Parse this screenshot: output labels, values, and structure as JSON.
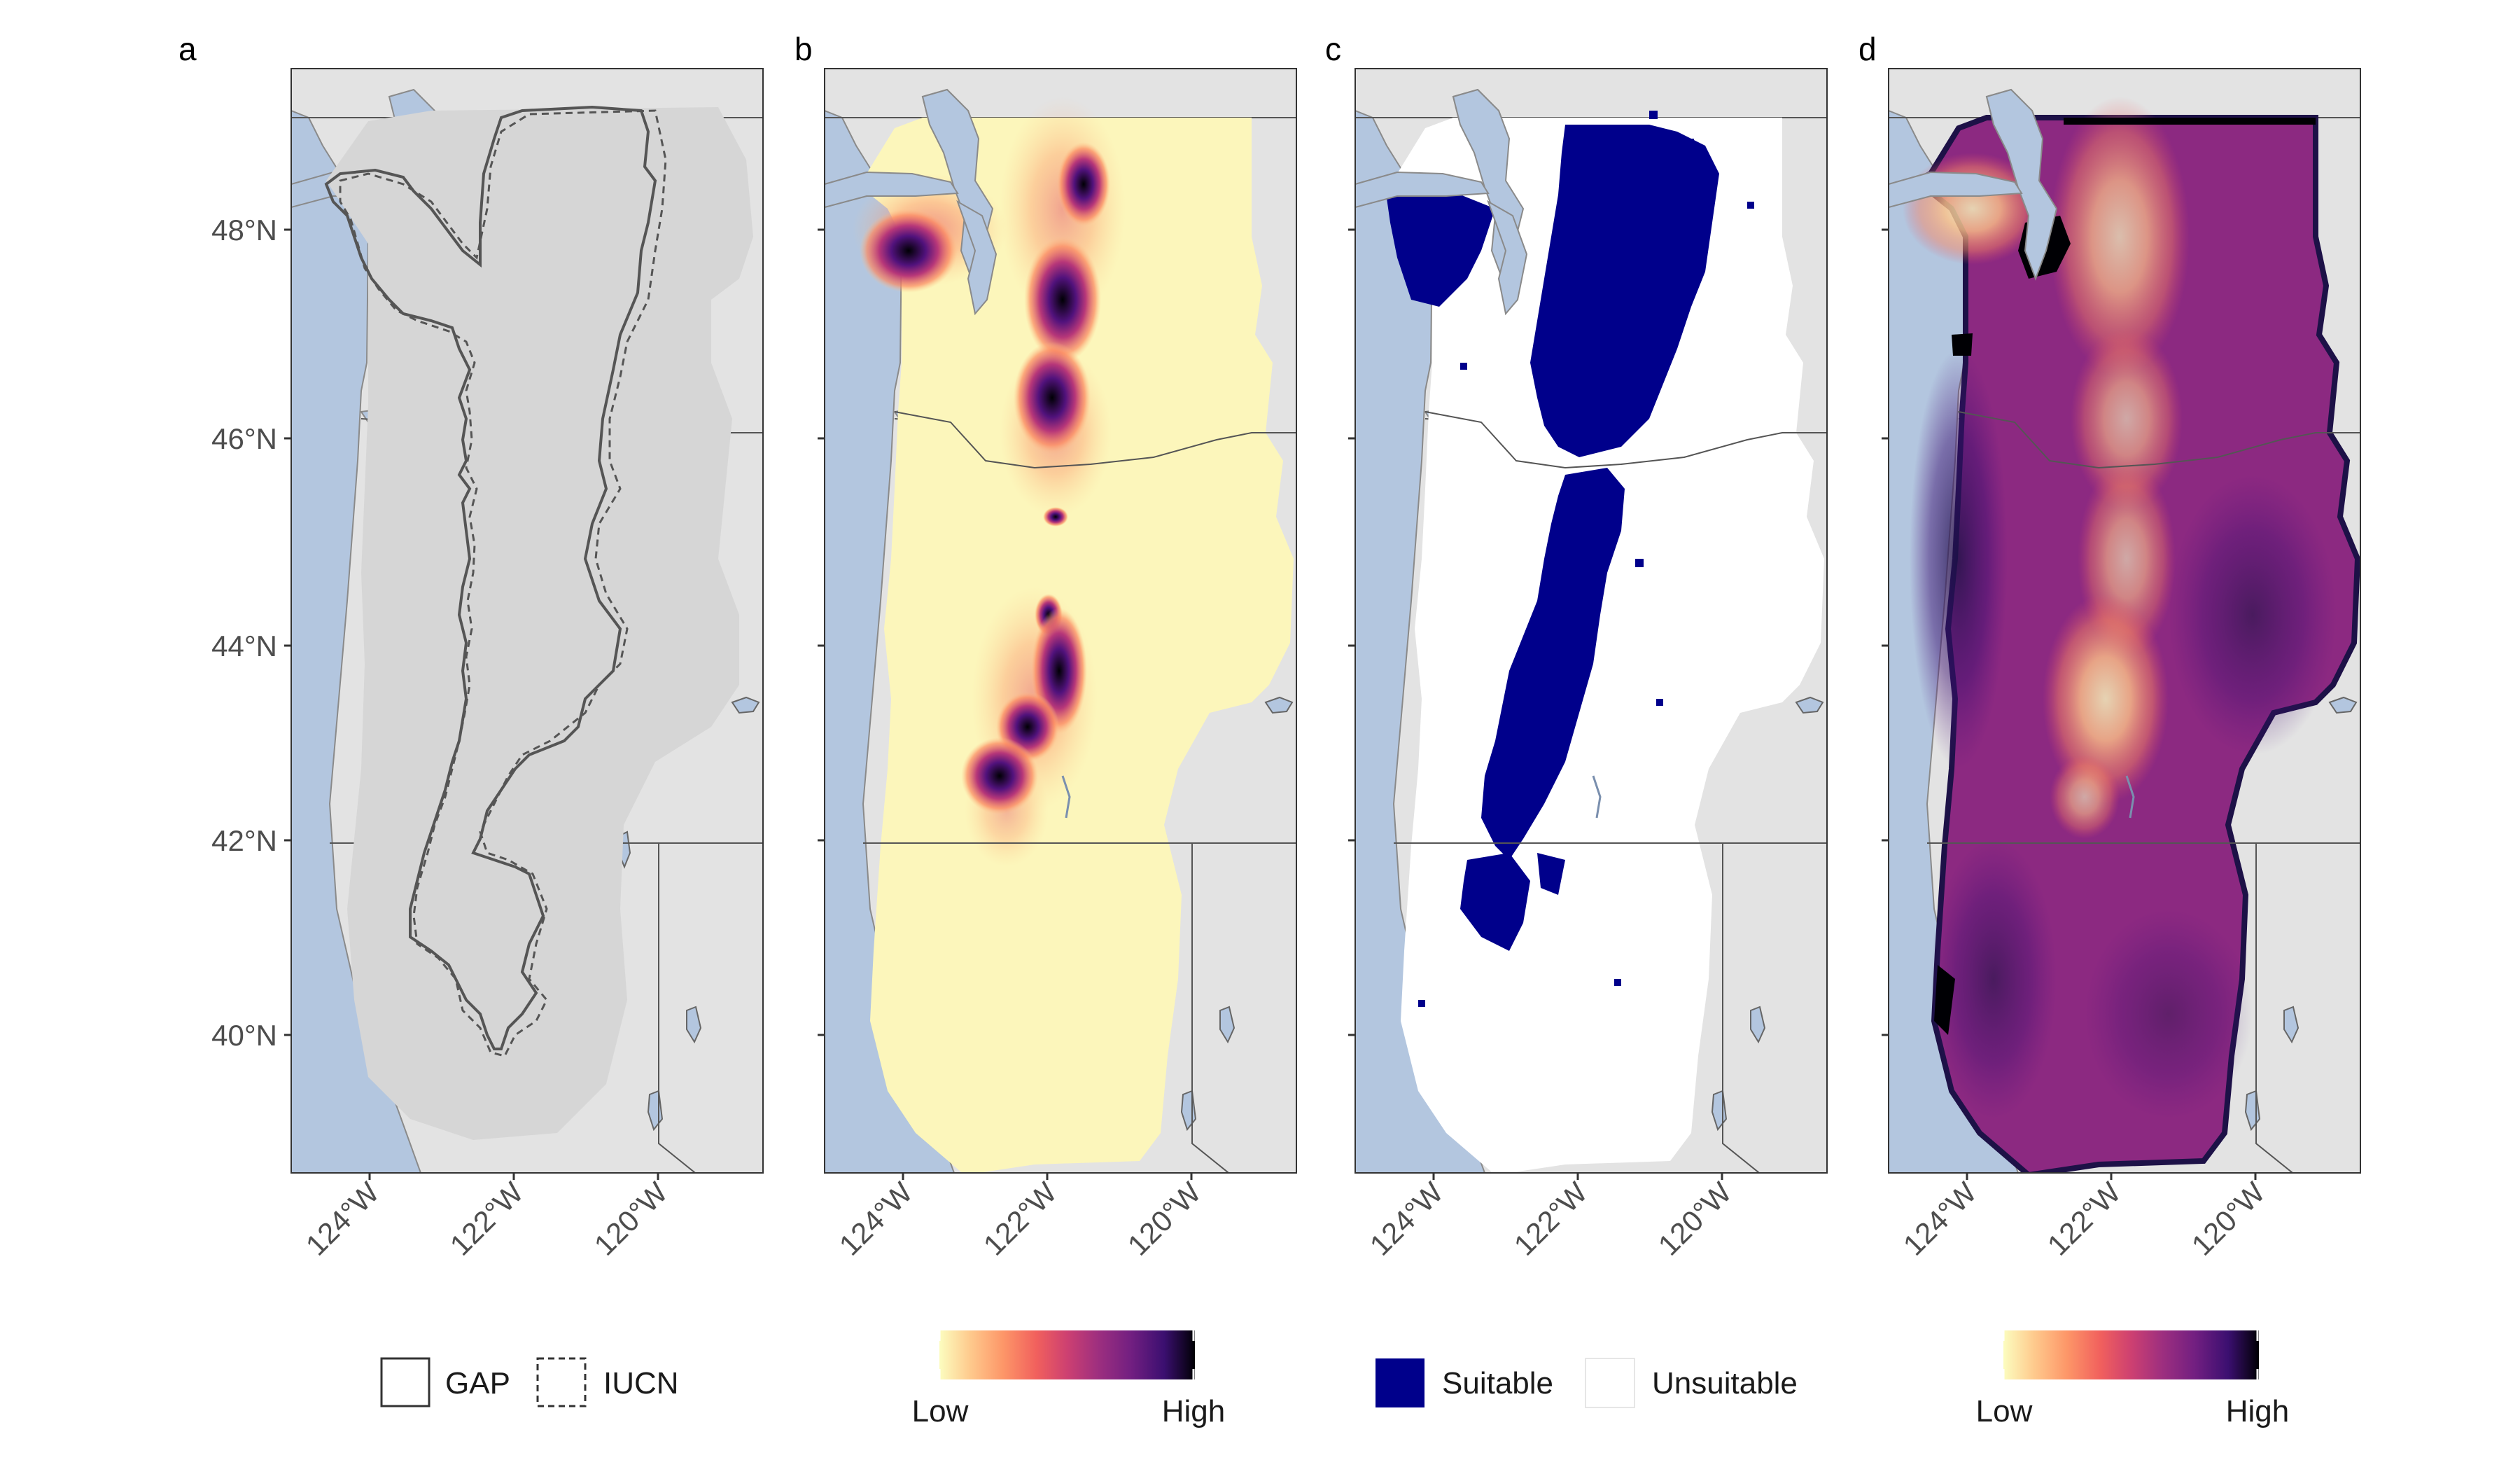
{
  "panels": [
    {
      "letter": "a"
    },
    {
      "letter": "b"
    },
    {
      "letter": "c"
    },
    {
      "letter": "d"
    }
  ],
  "y_ticks": [
    "48°N",
    "46°N",
    "44°N",
    "42°N",
    "40°N"
  ],
  "x_ticks": [
    "124°W",
    "122°W",
    "120°W"
  ],
  "legends": {
    "range": {
      "gap": "GAP",
      "iucn": "IUCN"
    },
    "suitability_b": {
      "low": "Low",
      "high": "High"
    },
    "binary": {
      "suitable": "Suitable",
      "unsuitable": "Unsuitable"
    },
    "uncertainty_d": {
      "low": "Low",
      "high": "High"
    }
  },
  "colors": {
    "water": "#b3c6df",
    "land": "#e3e3e3",
    "region_buffer": "#d6d6d6",
    "suitable": "#00008b",
    "unsuitable": "#ffffff",
    "magma_ramp": [
      "#fcfdbf",
      "#fec287",
      "#fb8761",
      "#e55064",
      "#b73779",
      "#8c2981",
      "#51127c",
      "#1d1147",
      "#000004"
    ]
  }
}
